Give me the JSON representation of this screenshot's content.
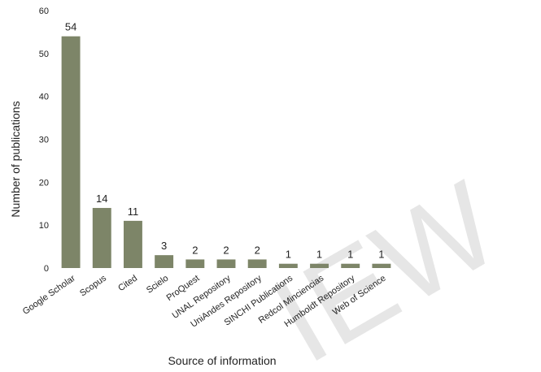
{
  "chart_data": {
    "type": "bar",
    "title": "",
    "xlabel": "Source of information",
    "ylabel": "Number of publications",
    "ylim": [
      0,
      60
    ],
    "yticks": [
      0,
      10,
      20,
      30,
      40,
      50,
      60
    ],
    "grid": false,
    "categories": [
      "Google Scholar",
      "Scopus",
      "Cited",
      "Scielo",
      "ProQuest",
      "UNAL Repository",
      "UniAndes Repository",
      "SINCHI Publications",
      "Redcol Minciencias",
      "Humboldt Repository",
      "Web of Science"
    ],
    "values": [
      54,
      14,
      11,
      3,
      2,
      2,
      2,
      1,
      1,
      1,
      1
    ],
    "data_labels": [
      "54",
      "14",
      "11",
      "3",
      "2",
      "2",
      "2",
      "1",
      "1",
      "1",
      "1"
    ],
    "bar_color": "#7d8568"
  },
  "watermark": "IEW"
}
